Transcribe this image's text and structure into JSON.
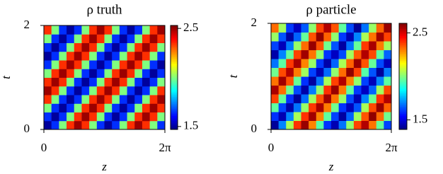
{
  "chart_data": [
    {
      "type": "heatmap",
      "title": "ρ truth",
      "xlabel": "z",
      "ylabel": "t",
      "colormap": "jet",
      "xlim": [
        0,
        6.283185
      ],
      "ylim": [
        0,
        2
      ],
      "clim": [
        1.47,
        2.53
      ],
      "xticks": [
        0,
        {
          "value": 6.283185,
          "label": "2π"
        }
      ],
      "yticks": [
        0,
        2
      ],
      "cticks": [
        1.5,
        2.5
      ],
      "values": [
        [
          1.5,
          1.65,
          2,
          2.35,
          2.5,
          2.35,
          2,
          1.65,
          1.5,
          1.65,
          2,
          2.35,
          2.5,
          2.35,
          2,
          1.65
        ],
        [
          1.65,
          1.5,
          1.65,
          2,
          2.35,
          2.5,
          2.35,
          2,
          1.65,
          1.5,
          1.65,
          2,
          2.35,
          2.5,
          2.35,
          2
        ],
        [
          2,
          1.65,
          1.5,
          1.65,
          2,
          2.35,
          2.5,
          2.35,
          2,
          1.65,
          1.5,
          1.65,
          2,
          2.35,
          2.5,
          2.35
        ],
        [
          2.35,
          2,
          1.65,
          1.5,
          1.65,
          2,
          2.35,
          2.5,
          2.35,
          2,
          1.65,
          1.5,
          1.65,
          2,
          2.35,
          2.5
        ],
        [
          2.5,
          2.35,
          2,
          1.65,
          1.5,
          1.65,
          2,
          2.35,
          2.5,
          2.35,
          2,
          1.65,
          1.5,
          1.65,
          2,
          2.35
        ],
        [
          2.35,
          2.5,
          2.35,
          2,
          1.65,
          1.5,
          1.65,
          2,
          2.35,
          2.5,
          2.35,
          2,
          1.65,
          1.5,
          1.65,
          2
        ],
        [
          2,
          2.35,
          2.5,
          2.35,
          2,
          1.65,
          1.5,
          1.65,
          2,
          2.35,
          2.5,
          2.35,
          2,
          1.65,
          1.5,
          1.65
        ],
        [
          1.65,
          2,
          2.35,
          2.5,
          2.35,
          2,
          1.65,
          1.5,
          1.65,
          2,
          2.35,
          2.5,
          2.35,
          2,
          1.65,
          1.5
        ],
        [
          1.5,
          1.65,
          2,
          2.35,
          2.5,
          2.35,
          2,
          1.65,
          1.5,
          1.65,
          2,
          2.35,
          2.5,
          2.35,
          2,
          1.65
        ],
        [
          1.65,
          1.5,
          1.65,
          2,
          2.35,
          2.5,
          2.35,
          2,
          1.65,
          1.5,
          1.65,
          2,
          2.35,
          2.5,
          2.35,
          2
        ],
        [
          2,
          1.65,
          1.5,
          1.65,
          2,
          2.35,
          2.5,
          2.35,
          2,
          1.65,
          1.5,
          1.65,
          2,
          2.35,
          2.5,
          2.35
        ],
        [
          2.35,
          2,
          1.65,
          1.5,
          1.65,
          2,
          2.35,
          2.5,
          2.35,
          2,
          1.65,
          1.5,
          1.65,
          2,
          2.35,
          2.5
        ]
      ]
    },
    {
      "type": "heatmap",
      "title": "ρ particle",
      "xlabel": "z",
      "ylabel": "t",
      "colormap": "jet",
      "xlim": [
        0,
        6.283185
      ],
      "ylim": [
        0,
        2
      ],
      "clim": [
        1.39,
        2.61
      ],
      "xticks": [
        0,
        {
          "value": 6.283185,
          "label": "2π"
        }
      ],
      "yticks": [
        0,
        2
      ],
      "cticks": [
        1.5,
        2.5
      ],
      "values": [
        [
          1.42,
          1.7,
          2.05,
          2.4,
          2.58,
          2.3,
          1.95,
          1.6,
          1.45,
          1.68,
          2.02,
          2.38,
          2.55,
          2.32,
          1.97,
          1.62
        ],
        [
          1.6,
          1.45,
          1.7,
          2.05,
          2.4,
          2.57,
          2.3,
          1.96,
          1.62,
          1.43,
          1.66,
          2.04,
          2.36,
          2.59,
          2.33,
          1.98
        ],
        [
          1.96,
          1.62,
          1.44,
          1.68,
          2.03,
          2.39,
          2.56,
          2.31,
          1.98,
          1.6,
          1.46,
          1.64,
          2.05,
          2.37,
          2.58,
          2.34
        ],
        [
          2.38,
          1.97,
          1.6,
          1.42,
          1.67,
          2.04,
          2.36,
          2.57,
          2.32,
          2.03,
          1.63,
          1.45,
          1.7,
          1.98,
          2.4,
          2.55
        ],
        [
          2.56,
          2.33,
          1.98,
          1.63,
          1.44,
          1.69,
          2.02,
          2.4,
          2.58,
          2.31,
          1.96,
          1.61,
          1.47,
          1.66,
          2.04,
          2.37
        ],
        [
          2.32,
          2.57,
          2.36,
          1.97,
          1.6,
          1.43,
          1.68,
          2.05,
          2.38,
          2.55,
          2.3,
          2.02,
          1.62,
          1.46,
          1.7,
          1.96
        ],
        [
          1.98,
          2.37,
          2.55,
          2.31,
          2.04,
          1.62,
          1.45,
          1.67,
          2.02,
          2.33,
          2.59,
          2.38,
          1.95,
          1.64,
          1.42,
          1.69
        ],
        [
          1.68,
          1.96,
          2.39,
          2.56,
          2.3,
          2.03,
          1.61,
          1.44,
          1.66,
          2.05,
          2.34,
          2.58,
          2.36,
          1.97,
          1.63,
          1.46
        ],
        [
          1.44,
          1.7,
          1.97,
          2.38,
          2.57,
          2.32,
          2.02,
          1.6,
          1.47,
          1.63,
          2.04,
          2.35,
          2.55,
          2.37,
          1.96,
          1.66
        ],
        [
          1.62,
          1.46,
          1.69,
          2.03,
          2.33,
          2.58,
          2.36,
          1.98,
          1.64,
          1.43,
          1.68,
          1.97,
          2.39,
          2.56,
          2.31,
          2.04
        ],
        [
          2.03,
          1.64,
          1.43,
          1.66,
          1.97,
          2.36,
          2.59,
          2.34,
          2.02,
          1.61,
          1.45,
          1.7,
          2.05,
          2.32,
          2.57,
          2.38
        ],
        [
          2.33,
          2.04,
          1.61,
          1.47,
          1.65,
          2.02,
          2.38,
          2.55,
          2.36,
          1.96,
          1.63,
          1.42,
          1.68,
          2.03,
          2.34,
          2.58
        ]
      ]
    }
  ]
}
